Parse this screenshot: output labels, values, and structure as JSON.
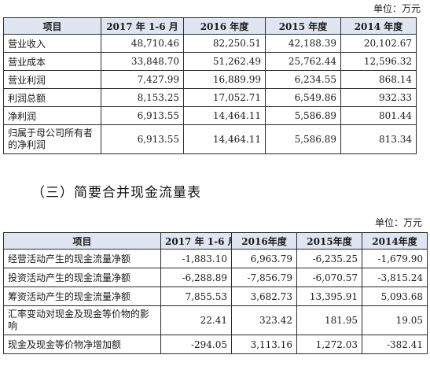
{
  "unit_label": "单位：万元",
  "table1": {
    "headers": [
      "项目",
      "2017 年 1-6 月",
      "2016 年度",
      "2015 年度",
      "2014 年度"
    ],
    "rows": [
      {
        "label": "营业收入",
        "values": [
          "48,710.46",
          "82,250.51",
          "42,188.39",
          "20,102.67"
        ]
      },
      {
        "label": "营业成本",
        "values": [
          "33,848.70",
          "51,262.49",
          "25,762.44",
          "12,596.32"
        ]
      },
      {
        "label": "营业利润",
        "values": [
          "7,427.99",
          "16,889.99",
          "6,234.55",
          "868.14"
        ]
      },
      {
        "label": "利润总额",
        "values": [
          "8,153.25",
          "17,052.71",
          "6,549.86",
          "932.33"
        ]
      },
      {
        "label": "净利润",
        "values": [
          "6,913.55",
          "14,464.11",
          "5,586.89",
          "801.44"
        ]
      },
      {
        "label": "归属于母公司所有者的净利润",
        "values": [
          "6,913.55",
          "14,464.11",
          "5,586.89",
          "813.34"
        ]
      }
    ]
  },
  "section_title": "（三）简要合并现金流量表",
  "table2": {
    "headers": [
      "项目",
      "2017 年 1-6 月",
      "2016年度",
      "2015年度",
      "2014年度"
    ],
    "rows": [
      {
        "label": "经营活动产生的现金流量净额",
        "values": [
          "-1,883.10",
          "6,963.79",
          "-6,235.25",
          "-1,679.90"
        ]
      },
      {
        "label": "投资活动产生的现金流量净额",
        "values": [
          "-6,288.89",
          "-7,856.79",
          "-6,070.57",
          "-3,815.24"
        ]
      },
      {
        "label": "筹资活动产生的现金流量净额",
        "values": [
          "7,855.53",
          "3,682.73",
          "13,395.91",
          "5,093.68"
        ]
      },
      {
        "label": "汇率变动对现金及现金等价物的影响",
        "values": [
          "22.41",
          "323.42",
          "181.95",
          "19.05"
        ]
      },
      {
        "label": "现金及现金等价物净增加额",
        "values": [
          "-294.05",
          "3,113.16",
          "1,272.03",
          "-382.41"
        ]
      }
    ]
  }
}
